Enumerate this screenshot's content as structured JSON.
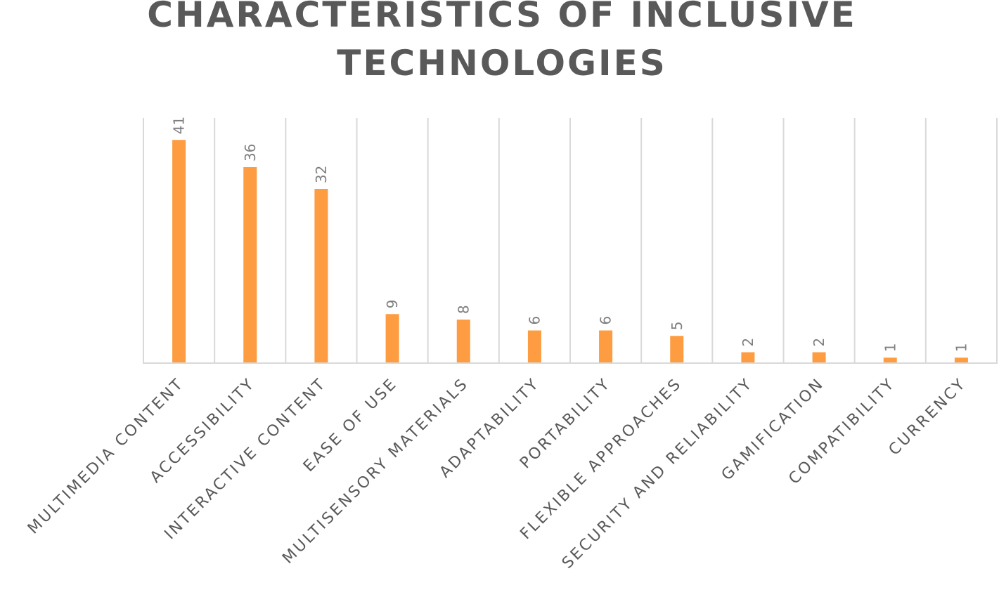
{
  "chart_data": {
    "type": "bar",
    "title_lines": [
      "CHARACTERISTICS OF INCLUSIVE",
      "TECHNOLOGIES"
    ],
    "categories": [
      "MULTIMEDIA CONTENT",
      "ACCESSIBILITY",
      "INTERACTIVE CONTENT",
      "EASE OF USE",
      "MULTISENSORY MATERIALS",
      "ADAPTABILITY",
      "PORTABILITY",
      "FLEXIBLE APPROACHES",
      "SECURITY AND RELIABILITY",
      "GAMIFICATION",
      "COMPATIBILITY",
      "CURRENCY"
    ],
    "values": [
      41,
      36,
      32,
      9,
      8,
      6,
      6,
      5,
      2,
      2,
      1,
      1
    ],
    "data_labels": true,
    "ylim": [
      0,
      45
    ],
    "grid": "vertical",
    "legend": "none",
    "bar_color": "#fd9c40",
    "grid_color": "#d9d9d9",
    "axis_color": "#d9d9d9"
  }
}
